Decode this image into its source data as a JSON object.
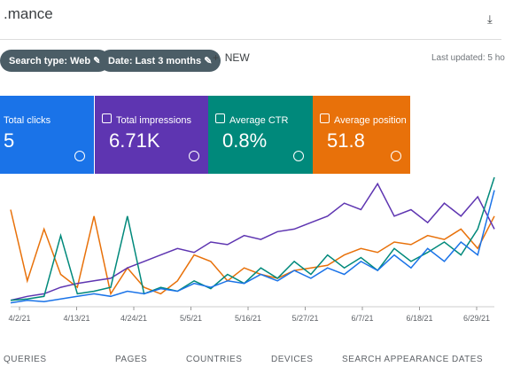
{
  "header": {
    "title": ".mance"
  },
  "filters": {
    "search_type": "Search type: Web",
    "date": "Date: Last 3 months",
    "new": "NEW",
    "last_updated": "Last updated: 5 ho"
  },
  "metrics": [
    {
      "label": "Total clicks",
      "value": "5",
      "color": "#1a73e8"
    },
    {
      "label": "Total impressions",
      "value": "6.71K",
      "color": "#5e35b1"
    },
    {
      "label": "Average CTR",
      "value": "0.8%",
      "color": "#00897b"
    },
    {
      "label": "Average position",
      "value": "51.8",
      "color": "#e8710a"
    }
  ],
  "chart": {
    "type": "line",
    "ylim": [
      0,
      100
    ],
    "x_labels": [
      "4/2/21",
      "4/13/21",
      "4/24/21",
      "5/5/21",
      "5/16/21",
      "5/27/21",
      "6/7/21",
      "6/18/21",
      "6/29/21"
    ],
    "series": [
      {
        "color": "#e8710a",
        "values": [
          75,
          20,
          60,
          25,
          15,
          70,
          10,
          30,
          15,
          10,
          20,
          40,
          35,
          20,
          30,
          25,
          22,
          28,
          30,
          32,
          40,
          45,
          42,
          50,
          48,
          55,
          52,
          60,
          45,
          70
        ]
      },
      {
        "color": "#5e35b1",
        "values": [
          5,
          8,
          10,
          15,
          18,
          20,
          22,
          30,
          35,
          40,
          45,
          42,
          50,
          48,
          55,
          52,
          58,
          60,
          65,
          70,
          80,
          75,
          95,
          70,
          75,
          65,
          80,
          70,
          85,
          60
        ]
      },
      {
        "color": "#00897b",
        "values": [
          5,
          6,
          8,
          55,
          10,
          12,
          15,
          70,
          10,
          15,
          12,
          20,
          14,
          25,
          18,
          30,
          22,
          35,
          25,
          40,
          30,
          38,
          28,
          45,
          35,
          42,
          50,
          40,
          60,
          100
        ]
      },
      {
        "color": "#1a73e8",
        "values": [
          3,
          5,
          4,
          6,
          8,
          10,
          8,
          12,
          10,
          14,
          12,
          18,
          15,
          20,
          18,
          25,
          20,
          28,
          22,
          30,
          25,
          35,
          28,
          40,
          30,
          45,
          35,
          50,
          40,
          90
        ]
      }
    ]
  },
  "tabs": [
    "QUERIES",
    "PAGES",
    "COUNTRIES",
    "DEVICES",
    "SEARCH APPEARANCE",
    "DATES"
  ]
}
